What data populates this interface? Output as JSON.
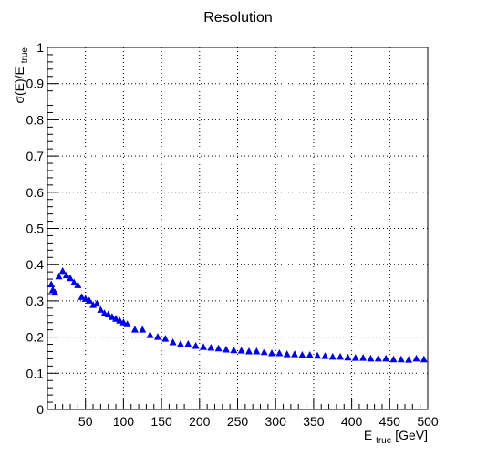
{
  "chart_data": {
    "type": "scatter",
    "title": "Resolution",
    "xlabel": {
      "main": "E",
      "sub": "true",
      "suffix": " [GeV]"
    },
    "ylabel": {
      "main": "σ(E)/E",
      "sub": "true"
    },
    "xlim": [
      0,
      500
    ],
    "ylim": [
      0,
      1
    ],
    "grid": true,
    "marker": "triangle-up",
    "color": "#0000e6",
    "x_ticks": [
      50,
      100,
      150,
      200,
      250,
      300,
      350,
      400,
      450,
      500
    ],
    "y_ticks": [
      0,
      0.1,
      0.2,
      0.3,
      0.4,
      0.5,
      0.6,
      0.7,
      0.8,
      0.9,
      1
    ],
    "x_tick_labels": [
      "50",
      "100",
      "150",
      "200",
      "250",
      "300",
      "350",
      "400",
      "450",
      "500"
    ],
    "y_tick_labels": [
      "0",
      "0.1",
      "0.2",
      "0.3",
      "0.4",
      "0.5",
      "0.6",
      "0.7",
      "0.8",
      "0.9",
      "1"
    ],
    "series": [
      {
        "x": [
          5,
          7,
          10,
          15,
          20,
          25,
          30,
          35,
          40,
          45,
          50,
          55,
          60,
          65,
          70,
          75,
          80,
          85,
          90,
          95,
          100,
          105,
          115,
          125,
          135,
          145,
          155,
          165,
          175,
          185,
          195,
          205,
          215,
          225,
          235,
          245,
          255,
          265,
          275,
          285,
          295,
          305,
          315,
          325,
          335,
          345,
          355,
          365,
          375,
          385,
          395,
          405,
          415,
          425,
          435,
          445,
          455,
          465,
          475,
          485,
          495
        ],
        "y": [
          0.345,
          0.33,
          0.322,
          0.367,
          0.382,
          0.37,
          0.362,
          0.35,
          0.343,
          0.31,
          0.305,
          0.3,
          0.288,
          0.292,
          0.275,
          0.265,
          0.262,
          0.255,
          0.25,
          0.245,
          0.24,
          0.235,
          0.22,
          0.22,
          0.205,
          0.2,
          0.195,
          0.185,
          0.18,
          0.18,
          0.175,
          0.172,
          0.17,
          0.168,
          0.165,
          0.163,
          0.162,
          0.16,
          0.16,
          0.158,
          0.155,
          0.155,
          0.152,
          0.152,
          0.15,
          0.15,
          0.148,
          0.147,
          0.145,
          0.145,
          0.143,
          0.142,
          0.142,
          0.14,
          0.14,
          0.14,
          0.138,
          0.138,
          0.137,
          0.14,
          0.138
        ]
      }
    ]
  }
}
